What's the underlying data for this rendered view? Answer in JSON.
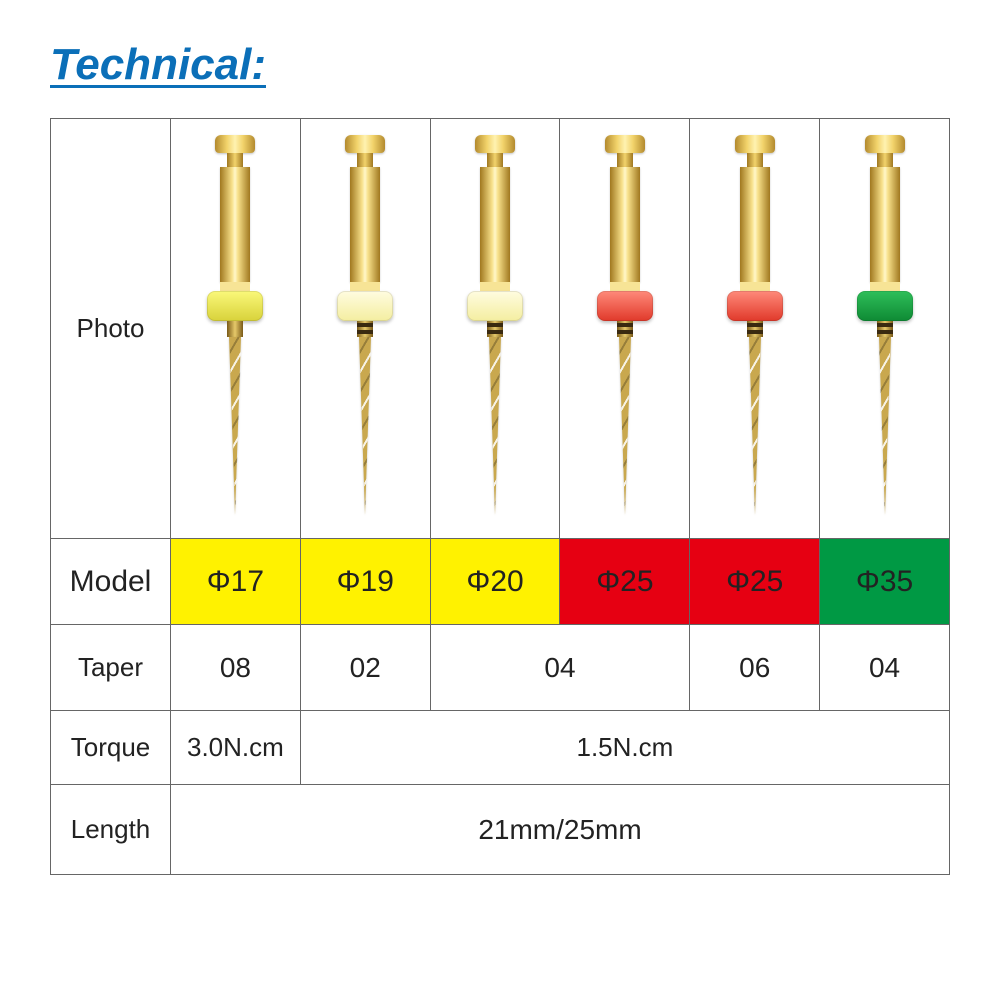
{
  "title": "Technical:",
  "labels": {
    "photo": "Photo",
    "model": "Model",
    "taper": "Taper",
    "torque": "Torque",
    "length": "Length"
  },
  "columns": [
    {
      "model": "Φ17",
      "model_bg": "#fff200",
      "ring_class": "y",
      "stripe": false
    },
    {
      "model": "Φ19",
      "model_bg": "#fff200",
      "ring_class": "lt",
      "stripe": true
    },
    {
      "model": "Φ20",
      "model_bg": "#fff200",
      "ring_class": "lt",
      "stripe": true
    },
    {
      "model": "Φ25",
      "model_bg": "#e60012",
      "ring_class": "r",
      "stripe": true
    },
    {
      "model": "Φ25",
      "model_bg": "#e60012",
      "ring_class": "r",
      "stripe": true
    },
    {
      "model": "Φ35",
      "model_bg": "#009944",
      "ring_class": "g",
      "stripe": true
    }
  ],
  "taper_cells": [
    {
      "value": "08",
      "span": 1
    },
    {
      "value": "02",
      "span": 1
    },
    {
      "value": "04",
      "span": 2
    },
    {
      "value": "06",
      "span": 1
    },
    {
      "value": "04",
      "span": 1
    }
  ],
  "torque_cells": [
    {
      "value": "3.0N.cm",
      "span": 1
    },
    {
      "value": "1.5N.cm",
      "span": 5
    }
  ],
  "length_value": "21mm/25mm",
  "colors": {
    "title": "#0b6fb8",
    "border": "#666666",
    "yellow": "#fff200",
    "red": "#e60012",
    "green": "#009944"
  },
  "font_sizes": {
    "title": 44,
    "cell": 28,
    "label": 26,
    "model": 30
  }
}
